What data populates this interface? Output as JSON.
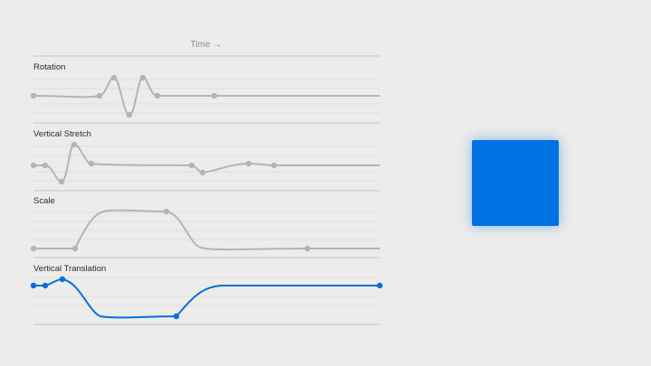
{
  "time_axis": {
    "label": "Time",
    "arrow": "→"
  },
  "colors": {
    "background": "#ececeb",
    "inactive_curve": "#b4b4b2",
    "active_curve": "#0a6fd8",
    "grid_line": "#dededc",
    "divider": "#c4c4c2",
    "square": "#0071e3"
  },
  "tracks": [
    {
      "label": "Rotation",
      "active": false
    },
    {
      "label": "Vertical Stretch",
      "active": false
    },
    {
      "label": "Scale",
      "active": false
    },
    {
      "label": "Vertical Translation",
      "active": true
    }
  ],
  "preview": {
    "shape": "square",
    "color": "#0071e3"
  }
}
